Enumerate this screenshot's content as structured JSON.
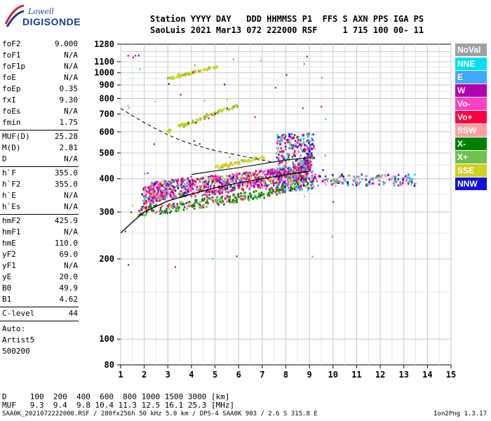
{
  "logo": {
    "top": "Lowell",
    "bottom": "DIGISONDE"
  },
  "header": {
    "line1": "Station YYYY DAY   DDD HHMMSS P1  FFS S AXN PPS IGA PS",
    "line2": "SaoLuis 2021 Mar13 072 222000 RSF     1 715 100 00- 11"
  },
  "params_group1": [
    {
      "k": "foF2",
      "v": "9.000"
    },
    {
      "k": "foF1",
      "v": "N/A"
    },
    {
      "k": "foF1p",
      "v": "N/A"
    },
    {
      "k": "foE",
      "v": "N/A"
    },
    {
      "k": "foEp",
      "v": "0.35"
    },
    {
      "k": "fxI",
      "v": "9.30"
    },
    {
      "k": "foEs",
      "v": "N/A"
    },
    {
      "k": "fmin",
      "v": "1.75"
    }
  ],
  "params_group2": [
    {
      "k": "MUF(D)",
      "v": "25.28"
    },
    {
      "k": "M(D)",
      "v": "2.81"
    },
    {
      "k": "D",
      "v": "N/A"
    }
  ],
  "params_group3": [
    {
      "k": "h`F",
      "v": "355.0"
    },
    {
      "k": "h`F2",
      "v": "355.0"
    },
    {
      "k": "h`E",
      "v": "N/A"
    },
    {
      "k": "h`Es",
      "v": "N/A"
    }
  ],
  "params_group4": [
    {
      "k": "hmF2",
      "v": "425.9"
    },
    {
      "k": "hmF1",
      "v": "N/A"
    },
    {
      "k": "hmE",
      "v": "110.0"
    },
    {
      "k": "yF2",
      "v": "69.0"
    },
    {
      "k": "yF1",
      "v": "N/A"
    },
    {
      "k": "yE",
      "v": "20.0"
    },
    {
      "k": "B0",
      "v": "49.9"
    },
    {
      "k": "B1",
      "v": "4.62"
    }
  ],
  "params_group5": [
    {
      "k": "C-level",
      "v": "44"
    }
  ],
  "auto": [
    "Auto:",
    "Artist5",
    "500200"
  ],
  "legend": [
    {
      "label": "NoVal",
      "color": "#a0a0a0"
    },
    {
      "label": "NNE",
      "color": "#00e0f0"
    },
    {
      "label": "E",
      "color": "#40a8ff"
    },
    {
      "label": "W",
      "color": "#b000b0"
    },
    {
      "label": "Vo-",
      "color": "#ff40c0"
    },
    {
      "label": "Vo+",
      "color": "#ff0040"
    },
    {
      "label": "SSW",
      "color": "#ffa0a0"
    },
    {
      "label": "X-",
      "color": "#008000"
    },
    {
      "label": "X+",
      "color": "#70c050"
    },
    {
      "label": "SSE",
      "color": "#d0d020"
    },
    {
      "label": "NNW",
      "color": "#1010e0"
    }
  ],
  "bottom": {
    "d_line": "D     100  200  400  600  800 1000 1500 3000 [km]",
    "muf_line": "MUF   9.3  9.4  9.8 10.4 11.3 12.5 16.1 25.3 [MHz]"
  },
  "footer": {
    "left": "SAA0K_2021072222000.RSF / 280fx256h 50 kHz 5.0 km / DPS-4 SAA0K 903 / 2.6 S 315.8 E",
    "right": "Ion2Png 1.3.17"
  },
  "chart_data": {
    "type": "scatter",
    "xlabel": "",
    "ylabel": "",
    "xlim": [
      1,
      15
    ],
    "ylim": [
      80,
      1280
    ],
    "y_scale": "log",
    "x_ticks": [
      "1",
      "2",
      "3",
      "4",
      "5",
      "6",
      "7",
      "8",
      "9",
      "10",
      "11",
      "12",
      "13",
      "14",
      "15"
    ],
    "y_ticks": [
      80,
      100,
      200,
      300,
      400,
      500,
      600,
      700,
      800,
      900,
      1000,
      1100,
      1280
    ],
    "grid": true,
    "o_trace": {
      "x": [
        2.0,
        2.3,
        2.6,
        3.0,
        3.5,
        4.0,
        4.5,
        5.0,
        5.5,
        6.0,
        6.5,
        7.0,
        7.5,
        8.0,
        8.5,
        8.8,
        9.0
      ],
      "y": [
        335,
        355,
        360,
        365,
        370,
        372,
        375,
        380,
        385,
        390,
        395,
        400,
        405,
        410,
        420,
        440,
        470
      ]
    },
    "x_trace": {
      "x": [
        1.8,
        2.5,
        3.0,
        3.5,
        4.0,
        4.5,
        5.0,
        5.5,
        6.0,
        6.5,
        7.0,
        7.5,
        8.0,
        8.5,
        9.0
      ],
      "y": [
        300,
        305,
        310,
        315,
        320,
        325,
        330,
        335,
        340,
        345,
        350,
        360,
        370,
        380,
        395
      ]
    },
    "second_hop": {
      "x": [
        3.0,
        3.5,
        4.0,
        4.5,
        5.0,
        5.5,
        6.0
      ],
      "y": [
        600,
        630,
        650,
        680,
        705,
        730,
        755
      ]
    },
    "third_hop": {
      "x": [
        3.0,
        3.5,
        4.0,
        4.5,
        5.0
      ],
      "y": [
        950,
        975,
        1000,
        1025,
        1050
      ]
    },
    "sse_echo": {
      "x": [
        5.0,
        5.5,
        6.0,
        6.5,
        7.0
      ],
      "y": [
        440,
        450,
        460,
        470,
        480
      ]
    },
    "profile_curve": {
      "x": [
        1.0,
        1.5,
        2.0,
        2.5,
        3.0,
        3.5,
        4.0,
        4.5,
        5.0,
        5.5,
        6.0,
        6.5,
        7.0,
        7.5,
        8.0,
        8.5,
        9.0
      ],
      "y": [
        250,
        275,
        300,
        315,
        330,
        340,
        350,
        360,
        370,
        378,
        386,
        393,
        400,
        407,
        414,
        420,
        426
      ]
    },
    "profile_upper": {
      "x": [
        4.0,
        5.0,
        6.0,
        7.0,
        8.0,
        9.0
      ],
      "y": [
        415,
        428,
        440,
        455,
        470,
        480
      ]
    },
    "dashed_curve": {
      "x": [
        1.0,
        1.5,
        2.0,
        2.5,
        3.0,
        3.5,
        4.0,
        5.0,
        6.0,
        7.0,
        7.5
      ],
      "y": [
        735,
        690,
        650,
        615,
        585,
        560,
        540,
        510,
        490,
        470,
        460
      ]
    }
  }
}
